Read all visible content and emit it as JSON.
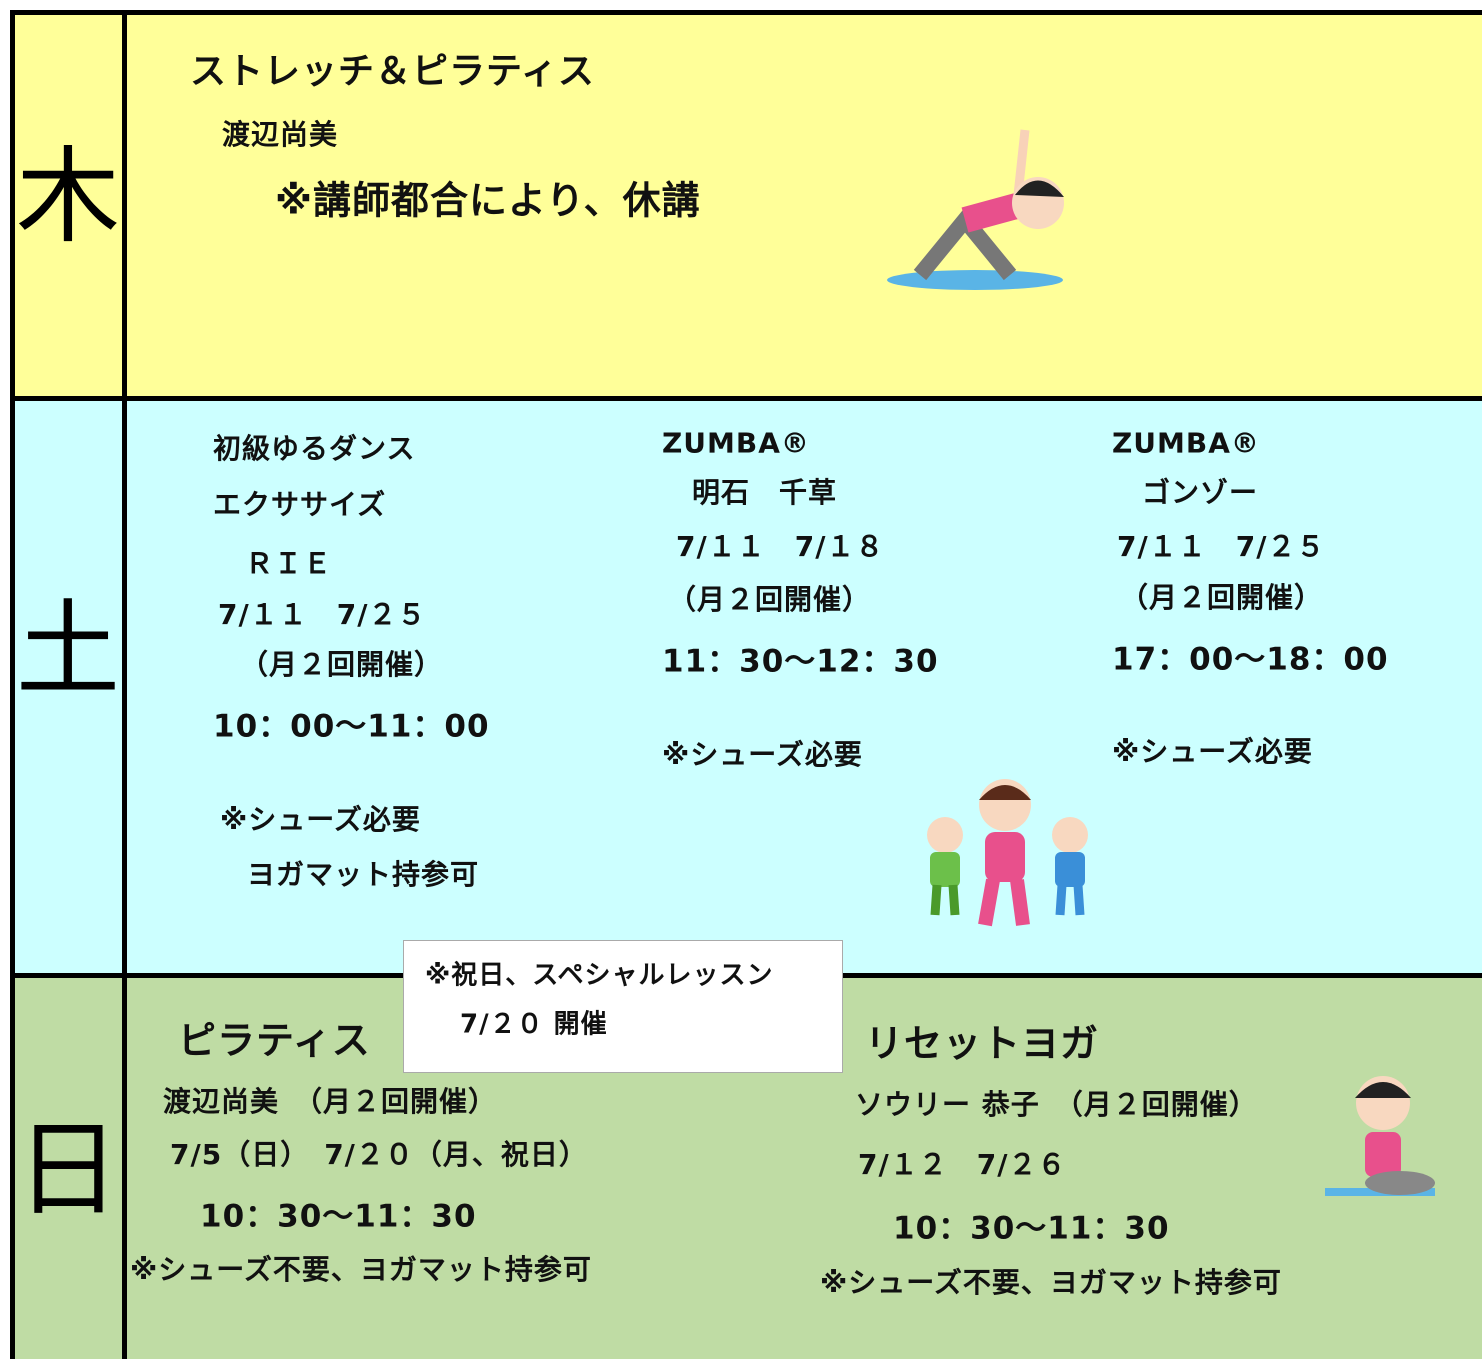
{
  "sections": [
    {
      "day": "木",
      "columns": [
        [
          "ストレッチ＆ピラティス",
          "渡辺尚美",
          "※講師都合により、休講"
        ]
      ]
    },
    {
      "day": "土",
      "columns": [
        [
          "初級ゆるダンス",
          "エクササイズ",
          "ＲＩＥ",
          "7/１１　7/２５",
          "（月２回開催）",
          "10：00〜11：00",
          "※シューズ必要",
          "ヨガマット持参可"
        ],
        [
          "ZUMBA®",
          "明石　千草",
          "7/１１　7/１８",
          "（月２回開催）",
          "11：30〜12：30",
          "※シューズ必要"
        ],
        [
          "ZUMBA®",
          "ゴンゾー",
          "7/１１　7/２５",
          "（月２回開催）",
          "17：00〜18：00",
          "※シューズ必要"
        ]
      ]
    },
    {
      "day": "日",
      "columns": [
        [
          "ピラティス",
          "渡辺尚美　（月２回開催）",
          "7/5（日）　7/２０（月、祝日）",
          "10：30〜11：30",
          "※シューズ不要、ヨガマット持参可"
        ],
        [
          "リセットヨガ",
          "ソウリー 恭子　（月２回開催）",
          "7/１２　7/２６",
          "10：30〜11：30",
          "※シューズ不要、ヨガマット持参可"
        ]
      ]
    }
  ],
  "note": [
    "※祝日、スペシャルレッスン",
    "7/２０ 開催"
  ]
}
